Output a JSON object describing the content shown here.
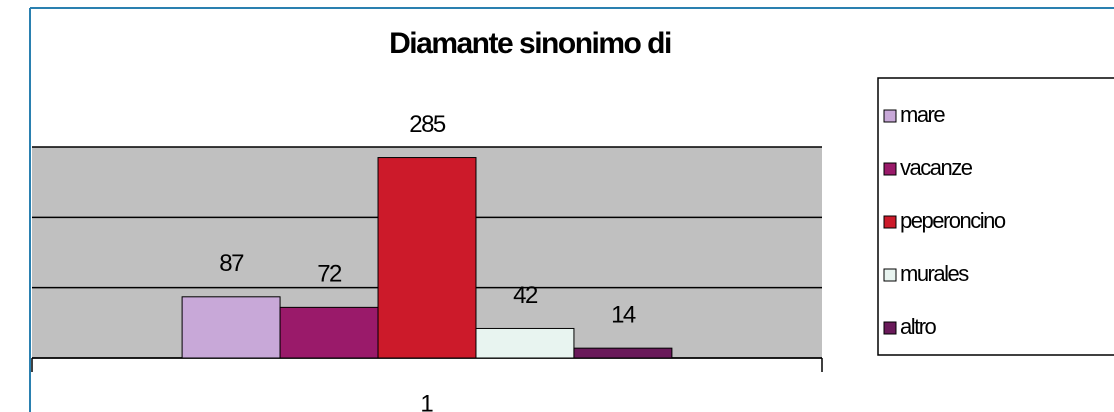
{
  "chart_data": {
    "type": "bar",
    "title": "Diamante sinonimo di",
    "categories": [
      "1"
    ],
    "series": [
      {
        "name": "mare",
        "color": "#c8a8d8",
        "values": [
          87
        ]
      },
      {
        "name": "vacanze",
        "color": "#9a1a6a",
        "values": [
          72
        ]
      },
      {
        "name": "peperoncino",
        "color": "#cc1a2a",
        "values": [
          285
        ]
      },
      {
        "name": "murales",
        "color": "#e8f4f0",
        "values": [
          42
        ]
      },
      {
        "name": "altro",
        "color": "#6a1a5a",
        "values": [
          14
        ]
      }
    ],
    "ylim": [
      0,
      300
    ],
    "yticks": [
      0,
      100,
      200,
      300
    ],
    "grid": true,
    "legend": "right"
  }
}
